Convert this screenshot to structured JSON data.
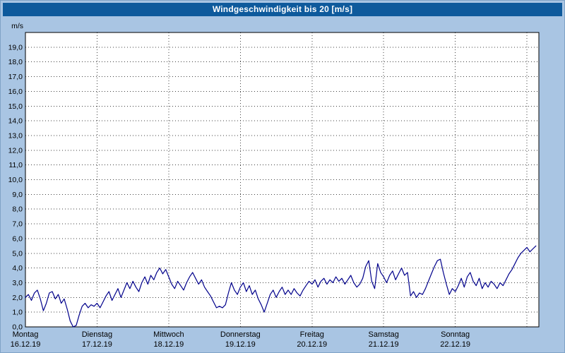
{
  "window": {
    "title": "Windgeschwindigkeit bis 20 [m/s]"
  },
  "chart_data": {
    "type": "line",
    "title": "Windgeschwindigkeit bis 20 [m/s]",
    "xlabel": "",
    "ylabel": "m/s",
    "ylim": [
      0,
      20
    ],
    "ytick_step": 1,
    "ytick_labels": [
      "0,0",
      "1,0",
      "2,0",
      "3,0",
      "4,0",
      "5,0",
      "6,0",
      "7,0",
      "8,0",
      "9,0",
      "10,0",
      "11,0",
      "12,0",
      "13,0",
      "14,0",
      "15,0",
      "16,0",
      "17,0",
      "18,0",
      "19,0"
    ],
    "x_unit": "hours",
    "hours_per_day": 24,
    "days": [
      {
        "name": "Montag",
        "date": "16.12.19"
      },
      {
        "name": "Dienstag",
        "date": "17.12.19"
      },
      {
        "name": "Mittwoch",
        "date": "18.12.19"
      },
      {
        "name": "Donnerstag",
        "date": "19.12.19"
      },
      {
        "name": "Freitag",
        "date": "20.12.19"
      },
      {
        "name": "Samstag",
        "date": "21.12.19"
      },
      {
        "name": "Sonntag",
        "date": "22.12.19"
      }
    ],
    "grid": "dotted",
    "legend": "none",
    "series": [
      {
        "name": "Windgeschwindigkeit",
        "values": [
          2.0,
          2.2,
          1.8,
          2.3,
          2.5,
          1.9,
          1.1,
          1.6,
          2.3,
          2.4,
          1.9,
          2.2,
          1.6,
          1.9,
          1.2,
          0.4,
          0.0,
          0.1,
          0.8,
          1.4,
          1.6,
          1.3,
          1.5,
          1.4,
          1.6,
          1.3,
          1.7,
          2.1,
          2.4,
          1.8,
          2.2,
          2.6,
          2.0,
          2.5,
          3.0,
          2.6,
          3.1,
          2.7,
          2.4,
          3.0,
          3.4,
          2.9,
          3.5,
          3.2,
          3.7,
          4.0,
          3.6,
          3.9,
          3.4,
          2.9,
          2.6,
          3.1,
          2.8,
          2.5,
          3.0,
          3.4,
          3.7,
          3.3,
          2.9,
          3.2,
          2.7,
          2.4,
          2.1,
          1.7,
          1.3,
          1.4,
          1.3,
          1.5,
          2.3,
          3.0,
          2.5,
          2.2,
          2.7,
          3.0,
          2.4,
          2.8,
          2.2,
          2.5,
          1.9,
          1.5,
          1.0,
          1.6,
          2.2,
          2.5,
          2.0,
          2.4,
          2.7,
          2.2,
          2.5,
          2.2,
          2.6,
          2.3,
          2.1,
          2.5,
          2.8,
          3.1,
          2.9,
          3.2,
          2.7,
          3.1,
          3.3,
          2.9,
          3.2,
          3.0,
          3.4,
          3.1,
          3.3,
          2.9,
          3.2,
          3.5,
          3.0,
          2.7,
          2.9,
          3.3,
          4.1,
          4.5,
          3.1,
          2.6,
          4.3,
          3.7,
          3.4,
          3.0,
          3.5,
          3.8,
          3.2,
          3.6,
          4.0,
          3.5,
          3.7,
          2.1,
          2.4,
          2.0,
          2.3,
          2.2,
          2.6,
          3.1,
          3.6,
          4.1,
          4.5,
          4.6,
          3.7,
          2.9,
          2.2,
          2.6,
          2.4,
          2.8,
          3.3,
          2.7,
          3.4,
          3.7,
          3.1,
          2.8,
          3.3,
          2.6,
          3.0,
          2.7,
          3.1,
          2.9,
          2.6,
          3.0,
          2.8,
          3.2,
          3.6,
          3.9,
          4.3,
          4.7,
          5.0,
          5.2,
          5.4,
          5.1,
          5.3,
          5.5
        ]
      }
    ],
    "colors": {
      "background": "#a9c5e3",
      "titlebar": "#0e5a9c",
      "title_text": "#ffffff",
      "plot_bg": "#ffffff",
      "line": "#00008b",
      "grid": "#404040",
      "frame": "#000000",
      "text": "#000000"
    }
  }
}
